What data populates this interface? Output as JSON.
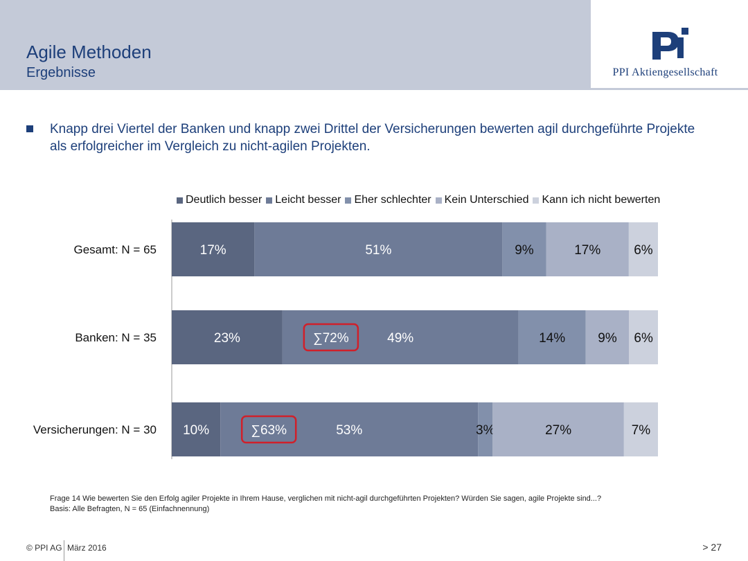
{
  "header": {
    "title": "Agile Methoden",
    "subtitle": "Ergebnisse",
    "company": "PPI Aktiengesellschaft",
    "brand_color": "#1d3f7a",
    "band_color": "#c4cad8"
  },
  "lead": "Knapp drei Viertel der Banken und knapp zwei Drittel der Versicherungen bewerten agil durchgeführte Projekte als erfolgreicher im Vergleich zu nicht-agilen Projekten.",
  "chart_data": {
    "type": "bar",
    "orientation": "horizontal",
    "stacked": true,
    "legend_position": "top",
    "categories": [
      "Gesamt: N = 65",
      "Banken: N = 35",
      "Versicherungen: N = 30"
    ],
    "series": [
      {
        "name": "Deutlich besser",
        "color": "#5a6680",
        "values": [
          17,
          23,
          10
        ],
        "labels": [
          "17%",
          "23%",
          "10%"
        ],
        "label_color": "#ffffff"
      },
      {
        "name": "Leicht besser",
        "color": "#6e7b97",
        "values": [
          51,
          49,
          53
        ],
        "labels": [
          "51%",
          "49%",
          "53%"
        ],
        "label_color": "#ffffff"
      },
      {
        "name": "Eher schlechter",
        "color": "#8290ab",
        "values": [
          9,
          14,
          3
        ],
        "labels": [
          "9%",
          "14%",
          "3%"
        ],
        "label_color": "#111111"
      },
      {
        "name": "Kein Unterschied",
        "color": "#a9b1c6",
        "values": [
          17,
          9,
          27
        ],
        "labels": [
          "17%",
          "9%",
          "27%"
        ],
        "label_color": "#111111"
      },
      {
        "name": "Kann ich nicht bewerten",
        "color": "#ccd1dd",
        "values": [
          6,
          6,
          7
        ],
        "labels": [
          "6%",
          "6%",
          "7%"
        ],
        "label_color": "#111111"
      }
    ],
    "annotations": [
      {
        "category": "Banken: N = 35",
        "text": "∑72%",
        "color": "#d0202a"
      },
      {
        "category": "Versicherungen: N = 30",
        "text": "∑63%",
        "color": "#d0202a"
      }
    ],
    "xlim": [
      0,
      100
    ]
  },
  "footnote": {
    "question": "Frage 14  Wie bewerten Sie den Erfolg agiler Projekte in Ihrem Hause, verglichen mit nicht-agil durchgeführten Projekten? Würden Sie sagen, agile Projekte sind...?",
    "basis": "Basis: Alle Befragten, N = 65 (Einfachnennung)"
  },
  "footer": {
    "copyright": "© PPI AG",
    "date": "März 2016",
    "page": "> 27"
  }
}
